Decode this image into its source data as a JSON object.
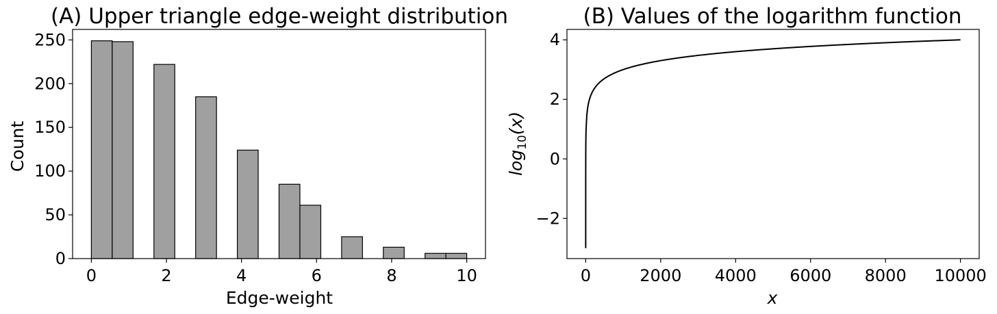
{
  "chart_data": [
    {
      "type": "bar",
      "subtype": "histogram",
      "title": "(A) Upper triangle edge-weight distribution",
      "xlabel": "Edge-weight",
      "ylabel": "Count",
      "xlim": [
        -0.5,
        10.5
      ],
      "ylim": [
        0,
        262
      ],
      "xticks": [
        0,
        2,
        4,
        6,
        8,
        10
      ],
      "xtick_labels": [
        "0",
        "2",
        "4",
        "6",
        "8",
        "10"
      ],
      "yticks": [
        0,
        50,
        100,
        150,
        200,
        250
      ],
      "ytick_labels": [
        "0",
        "50",
        "100",
        "150",
        "200",
        "250"
      ],
      "bin_width": 0.556,
      "bins": [
        {
          "start": 0.0,
          "count": 249
        },
        {
          "start": 0.556,
          "count": 248
        },
        {
          "start": 1.667,
          "count": 222
        },
        {
          "start": 2.778,
          "count": 185
        },
        {
          "start": 3.889,
          "count": 124
        },
        {
          "start": 5.0,
          "count": 85
        },
        {
          "start": 5.556,
          "count": 61
        },
        {
          "start": 6.667,
          "count": 25
        },
        {
          "start": 7.778,
          "count": 13
        },
        {
          "start": 8.889,
          "count": 6
        },
        {
          "start": 9.444,
          "count": 6
        }
      ],
      "bar_color": "#a0a0a0",
      "edge_color": "#000000",
      "grid": false,
      "legend": false
    },
    {
      "type": "line",
      "title": "(B) Values of the logarithm function",
      "xlabel_base": "x",
      "ylabel_base": "log",
      "ylabel_sub": "10",
      "ylabel_tail": "(x)",
      "function": "log10",
      "x_range": [
        0.001,
        10000
      ],
      "xlim": [
        -500,
        10500
      ],
      "ylim": [
        -3.35,
        4.35
      ],
      "xticks": [
        0,
        2000,
        4000,
        6000,
        8000,
        10000
      ],
      "xtick_labels": [
        "0",
        "2000",
        "4000",
        "6000",
        "8000",
        "10000"
      ],
      "yticks": [
        -2,
        0,
        2,
        4
      ],
      "ytick_labels": [
        "−2",
        "0",
        "2",
        "4"
      ],
      "line_color": "#000000",
      "grid": false,
      "legend": false
    }
  ]
}
